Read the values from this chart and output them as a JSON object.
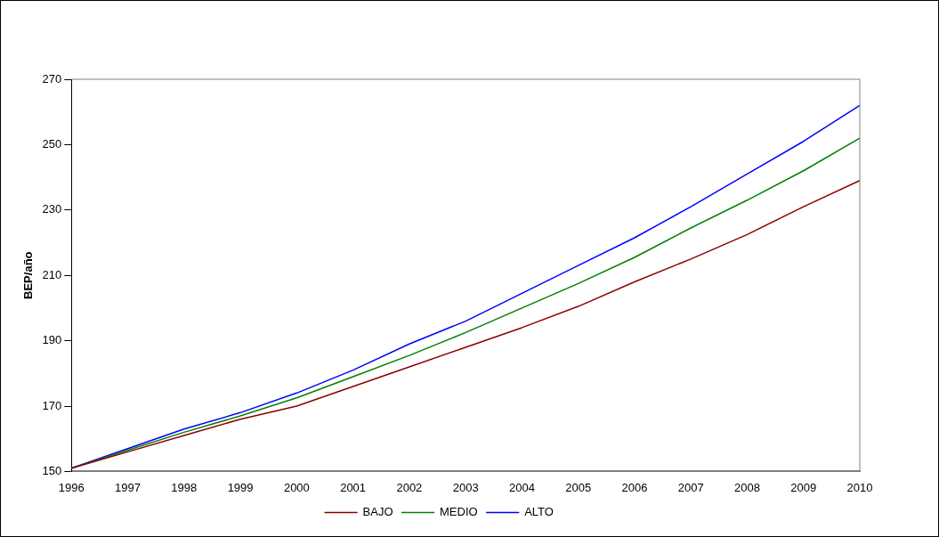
{
  "chart_data": {
    "type": "line",
    "ylabel": "BEP/año",
    "categories": [
      "1996",
      "1997",
      "1998",
      "1999",
      "2000",
      "2001",
      "2002",
      "2003",
      "2004",
      "2005",
      "2006",
      "2007",
      "2008",
      "2009",
      "2010"
    ],
    "series": [
      {
        "name": "BAJO",
        "color": "#8b0000",
        "values": [
          151,
          156,
          161,
          166,
          170,
          176,
          182,
          188,
          194,
          200.5,
          208,
          215,
          222.5,
          231,
          239
        ]
      },
      {
        "name": "MEDIO",
        "color": "#008000",
        "values": [
          151,
          156.5,
          162,
          167,
          172.5,
          179,
          185.5,
          192.5,
          200,
          207.5,
          215.5,
          224.5,
          233,
          242,
          252
        ]
      },
      {
        "name": "ALTO",
        "color": "#0000ff",
        "values": [
          151,
          157,
          163,
          168,
          174,
          181,
          189,
          196,
          204.5,
          213,
          221.5,
          231,
          241,
          251,
          262
        ]
      }
    ],
    "ylim": [
      150,
      270
    ],
    "yticks": [
      150,
      170,
      190,
      210,
      230,
      250,
      270
    ],
    "grid": false,
    "legend": "bottom",
    "marker": "none",
    "line_style": "solid"
  }
}
